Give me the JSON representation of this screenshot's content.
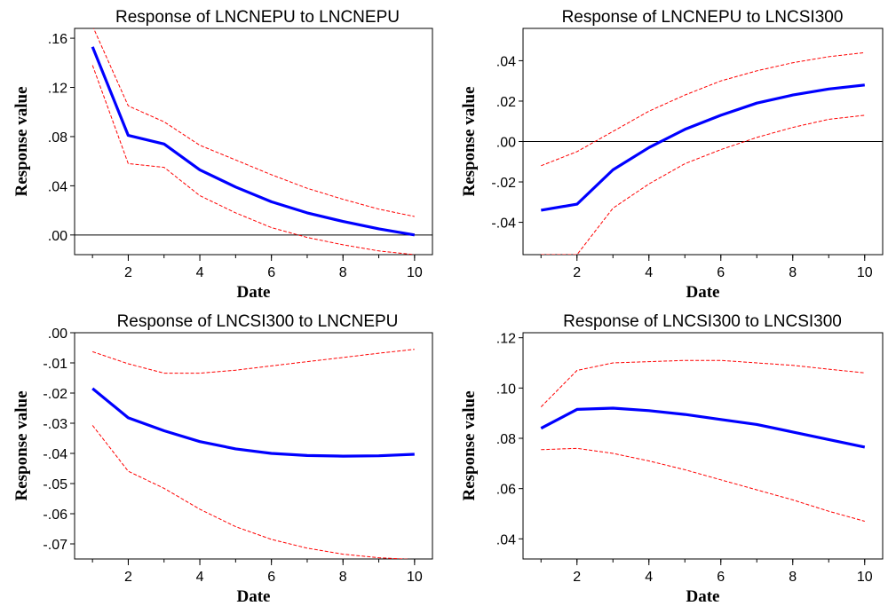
{
  "chart_data": [
    {
      "type": "line",
      "title": "Response of LNCNEPU to LNCNEPU",
      "xlabel": "Date",
      "ylabel": "Response value",
      "x": [
        1,
        2,
        3,
        4,
        5,
        6,
        7,
        8,
        9,
        10
      ],
      "xlim": [
        0.5,
        10.5
      ],
      "xticks": [
        2,
        4,
        6,
        8,
        10
      ],
      "ylim": [
        -0.016,
        0.168
      ],
      "yticks": [
        0.0,
        0.04,
        0.08,
        0.12,
        0.16
      ],
      "ytick_labels": [
        ".00",
        ".04",
        ".08",
        ".12",
        ".16"
      ],
      "zero_line": true,
      "grid": false,
      "series": [
        {
          "role": "response",
          "color": "#0000ff",
          "values": [
            0.153,
            0.081,
            0.074,
            0.053,
            0.039,
            0.027,
            0.018,
            0.011,
            0.005,
            0.0
          ]
        },
        {
          "role": "upper",
          "color": "#ff0000",
          "style": "dashed",
          "values": [
            0.17,
            0.105,
            0.092,
            0.073,
            0.061,
            0.049,
            0.038,
            0.029,
            0.021,
            0.015
          ]
        },
        {
          "role": "lower",
          "color": "#ff0000",
          "style": "dashed",
          "values": [
            0.138,
            0.058,
            0.055,
            0.032,
            0.018,
            0.006,
            -0.002,
            -0.008,
            -0.013,
            -0.016
          ]
        }
      ]
    },
    {
      "type": "line",
      "title": "Response of LNCNEPU to LNCSI300",
      "xlabel": "Date",
      "ylabel": "Response value",
      "x": [
        1,
        2,
        3,
        4,
        5,
        6,
        7,
        8,
        9,
        10
      ],
      "xlim": [
        0.5,
        10.5
      ],
      "xticks": [
        2,
        4,
        6,
        8,
        10
      ],
      "ylim": [
        -0.056,
        0.056
      ],
      "yticks": [
        -0.04,
        -0.02,
        0.0,
        0.02,
        0.04
      ],
      "ytick_labels": [
        "-.04",
        "-.02",
        ".00",
        ".02",
        ".04"
      ],
      "zero_line": true,
      "grid": false,
      "series": [
        {
          "role": "response",
          "color": "#0000ff",
          "values": [
            -0.034,
            -0.031,
            -0.014,
            -0.003,
            0.006,
            0.013,
            0.019,
            0.023,
            0.026,
            0.028
          ]
        },
        {
          "role": "upper",
          "color": "#ff0000",
          "style": "dashed",
          "values": [
            -0.012,
            -0.005,
            0.005,
            0.015,
            0.023,
            0.03,
            0.035,
            0.039,
            0.042,
            0.044
          ]
        },
        {
          "role": "lower",
          "color": "#ff0000",
          "style": "dashed",
          "values": [
            -0.056,
            -0.056,
            -0.033,
            -0.021,
            -0.011,
            -0.004,
            0.002,
            0.007,
            0.011,
            0.013
          ]
        }
      ]
    },
    {
      "type": "line",
      "title": "Response of LNCSI300 to LNCNEPU",
      "xlabel": "Date",
      "ylabel": "Response value",
      "x": [
        1,
        2,
        3,
        4,
        5,
        6,
        7,
        8,
        9,
        10
      ],
      "xlim": [
        0.5,
        10.5
      ],
      "xticks": [
        2,
        4,
        6,
        8,
        10
      ],
      "ylim": [
        -0.075,
        0.0
      ],
      "yticks": [
        0.0,
        -0.01,
        -0.02,
        -0.03,
        -0.04,
        -0.05,
        -0.06,
        -0.07
      ],
      "ytick_labels": [
        ".00",
        "-.01",
        "-.02",
        "-.03",
        "-.04",
        "-.05",
        "-.06",
        "-.07"
      ],
      "zero_line": false,
      "grid": false,
      "series": [
        {
          "role": "response",
          "color": "#0000ff",
          "values": [
            -0.0185,
            -0.0282,
            -0.0325,
            -0.0361,
            -0.0385,
            -0.04,
            -0.0407,
            -0.0409,
            -0.0408,
            -0.0403
          ]
        },
        {
          "role": "upper",
          "color": "#ff0000",
          "style": "dashed",
          "values": [
            -0.0063,
            -0.0103,
            -0.0134,
            -0.0134,
            -0.0124,
            -0.011,
            -0.0096,
            -0.0082,
            -0.0068,
            -0.0055
          ]
        },
        {
          "role": "lower",
          "color": "#ff0000",
          "style": "dashed",
          "values": [
            -0.0307,
            -0.0459,
            -0.0516,
            -0.0585,
            -0.0643,
            -0.0685,
            -0.0714,
            -0.0734,
            -0.0746,
            -0.0752
          ]
        }
      ]
    },
    {
      "type": "line",
      "title": "Response of LNCSI300 to LNCSI300",
      "xlabel": "Date",
      "ylabel": "Response value",
      "x": [
        1,
        2,
        3,
        4,
        5,
        6,
        7,
        8,
        9,
        10
      ],
      "xlim": [
        0.5,
        10.5
      ],
      "xticks": [
        2,
        4,
        6,
        8,
        10
      ],
      "ylim": [
        0.032,
        0.122
      ],
      "yticks": [
        0.04,
        0.06,
        0.08,
        0.1,
        0.12
      ],
      "ytick_labels": [
        ".04",
        ".06",
        ".08",
        ".10",
        ".12"
      ],
      "zero_line": false,
      "grid": false,
      "series": [
        {
          "role": "response",
          "color": "#0000ff",
          "values": [
            0.084,
            0.0915,
            0.092,
            0.091,
            0.0895,
            0.0875,
            0.0855,
            0.0825,
            0.0795,
            0.0765
          ]
        },
        {
          "role": "upper",
          "color": "#ff0000",
          "style": "dashed",
          "values": [
            0.0925,
            0.107,
            0.11,
            0.1105,
            0.111,
            0.111,
            0.11,
            0.109,
            0.1075,
            0.106
          ]
        },
        {
          "role": "lower",
          "color": "#ff0000",
          "style": "dashed",
          "values": [
            0.0755,
            0.076,
            0.074,
            0.071,
            0.0675,
            0.0635,
            0.0595,
            0.0555,
            0.051,
            0.047
          ]
        }
      ]
    }
  ]
}
